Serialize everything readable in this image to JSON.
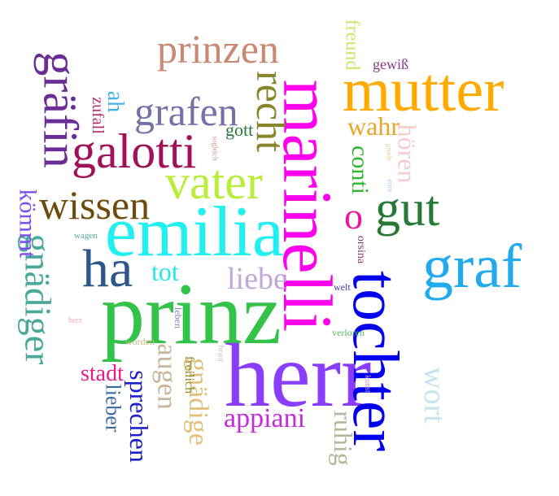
{
  "words": {
    "herr": {
      "text": "herr",
      "color": "#8a3dfc"
    },
    "prinz": {
      "text": "prinz",
      "color": "#33c24a"
    },
    "marinelli": {
      "text": "marinelli",
      "color": "#ff00ee"
    },
    "tochter": {
      "text": "tochter",
      "color": "#0000ee"
    },
    "emilia": {
      "text": "emilia",
      "color": "#22f0f0"
    },
    "mutter": {
      "text": "mutter",
      "color": "#ffaa00"
    },
    "vater": {
      "text": "vater",
      "color": "#b8ee3a"
    },
    "graf": {
      "text": "graf",
      "color": "#22aaee"
    },
    "galotti": {
      "text": "galotti",
      "color": "#a0115a"
    },
    "wissen": {
      "text": "wissen",
      "color": "#6e4b0c"
    },
    "prinzen": {
      "text": "prinzen",
      "color": "#c88872"
    },
    "grafen": {
      "text": "grafen",
      "color": "#7272a6"
    },
    "gut": {
      "text": "gut",
      "color": "#267a36"
    },
    "ha": {
      "text": "ha",
      "color": "#2e5688"
    },
    "graefin": {
      "text": "gräfin",
      "color": "#6a2d96"
    },
    "recht": {
      "text": "recht",
      "color": "#86862a"
    },
    "gnaediger": {
      "text": "gnädiger",
      "color": "#4aa89a"
    },
    "o": {
      "text": "o",
      "color": "#e8189a"
    },
    "wort": {
      "text": "wort",
      "color": "#c8e2ee"
    },
    "liebe": {
      "text": "liebe",
      "color": "#c2a8d8"
    },
    "appiani": {
      "text": "appiani",
      "color": "#c42adc"
    },
    "augen": {
      "text": "augen",
      "color": "#cab49a"
    },
    "gnaedige": {
      "text": "gnädige",
      "color": "#e0c07a"
    },
    "sprechen": {
      "text": "sprechen",
      "color": "#2020c8"
    },
    "ruhig": {
      "text": "ruhig",
      "color": "#b0b89a"
    },
    "hoeren": {
      "text": "hören",
      "color": "#f6cccc"
    },
    "kommt": {
      "text": "kömmt",
      "color": "#7c4cec"
    },
    "tot": {
      "text": "tot",
      "color": "#22e8e8"
    },
    "wahr": {
      "text": "wahr",
      "color": "#e6a62a"
    },
    "conti": {
      "text": "conti",
      "color": "#2ab82a"
    },
    "stadt": {
      "text": "stadt",
      "color": "#e81a8a"
    },
    "lieber": {
      "text": "lieber",
      "color": "#3c6aa0"
    },
    "ah": {
      "text": "ah",
      "color": "#40b4e8"
    },
    "freund": {
      "text": "freund",
      "color": "#c8e86a"
    },
    "gott": {
      "text": "gott",
      "color": "#2a7a3a"
    },
    "zufall": {
      "text": "zufall",
      "color": "#b02a6a"
    },
    "gewiss": {
      "text": "gewiß",
      "color": "#8a3a8a"
    },
    "freilich": {
      "text": "freilich",
      "color": "#8a8a2a"
    },
    "orsina": {
      "text": "orsina",
      "color": "#8a3a6a"
    },
    "verloren": {
      "text": "verloren",
      "color": "#58b85a"
    },
    "welt": {
      "text": "welt",
      "color": "#3a3aa8"
    },
    "leben": {
      "text": "leben",
      "color": "#8a7ac8"
    },
    "worden": {
      "text": "worden",
      "color": "#c8b888"
    },
    "wagen": {
      "text": "wagen",
      "color": "#5aa89a"
    },
    "herz": {
      "text": "herz",
      "color": "#f0a8b8"
    },
    "braut": {
      "text": "braut",
      "color": "#c0c0c8"
    },
    "kunst": {
      "text": "kunst",
      "color": "#c89ab8"
    },
    "sogleich": {
      "text": "sogleich",
      "color": "#c89a8a"
    },
    "gnade": {
      "text": "gnade",
      "color": "#e8d0a8"
    },
    "ehre": {
      "text": "ehre",
      "color": "#a8c8f0"
    }
  }
}
